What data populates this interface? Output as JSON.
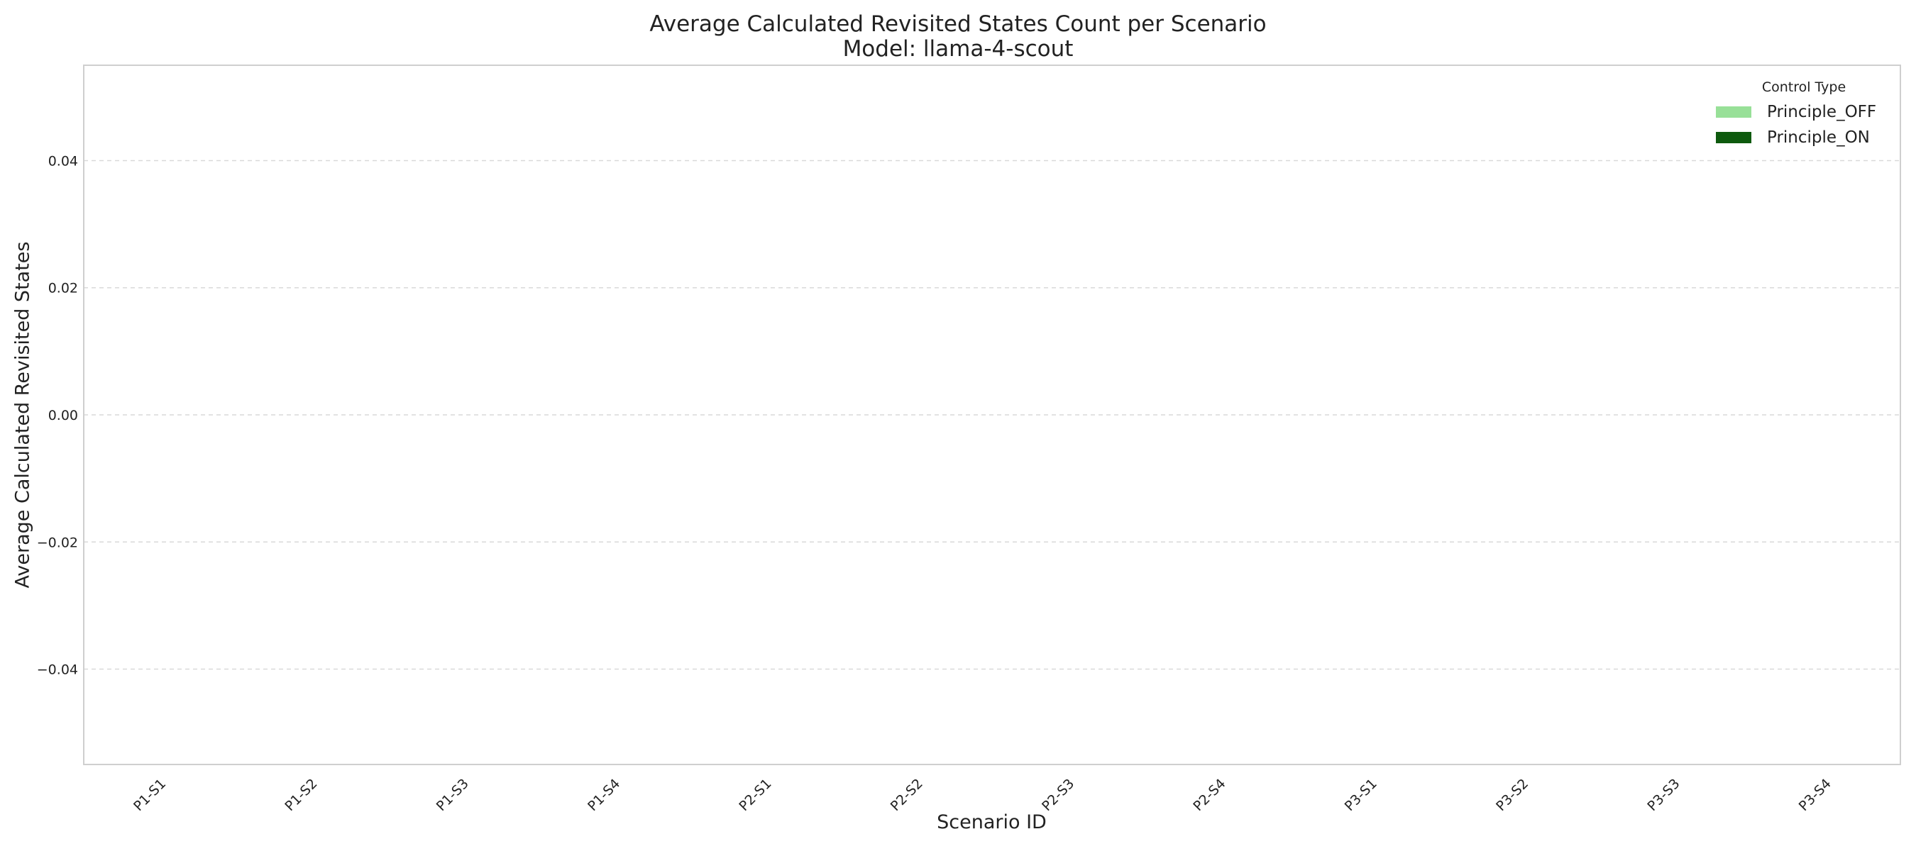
{
  "chart_data": {
    "type": "bar",
    "title": "Average Calculated Revisited States Count per Scenario",
    "subtitle": "Model: llama-4-scout",
    "xlabel": "Scenario ID",
    "ylabel": "Average Calculated Revisited States",
    "categories": [
      "P1-S1",
      "P1-S2",
      "P1-S3",
      "P1-S4",
      "P2-S1",
      "P2-S2",
      "P2-S3",
      "P2-S4",
      "P3-S1",
      "P3-S2",
      "P3-S3",
      "P3-S4"
    ],
    "series": [
      {
        "name": "Principle_OFF",
        "color": "#98e098",
        "values": [
          0,
          0,
          0,
          0,
          0,
          0,
          0,
          0,
          0,
          0,
          0,
          0
        ]
      },
      {
        "name": "Principle_ON",
        "color": "#0e5a0e",
        "values": [
          0,
          0,
          0,
          0,
          0,
          0,
          0,
          0,
          0,
          0,
          0,
          0
        ]
      }
    ],
    "ylim": [
      -0.055,
      0.055
    ],
    "yticks": [
      -0.04,
      -0.02,
      0.0,
      0.02,
      0.04
    ],
    "ytick_labels": [
      "−0.04",
      "−0.02",
      "0.00",
      "0.02",
      "0.04"
    ],
    "grid": true,
    "legend": {
      "title": "Control Type",
      "placement": "top-right"
    }
  }
}
